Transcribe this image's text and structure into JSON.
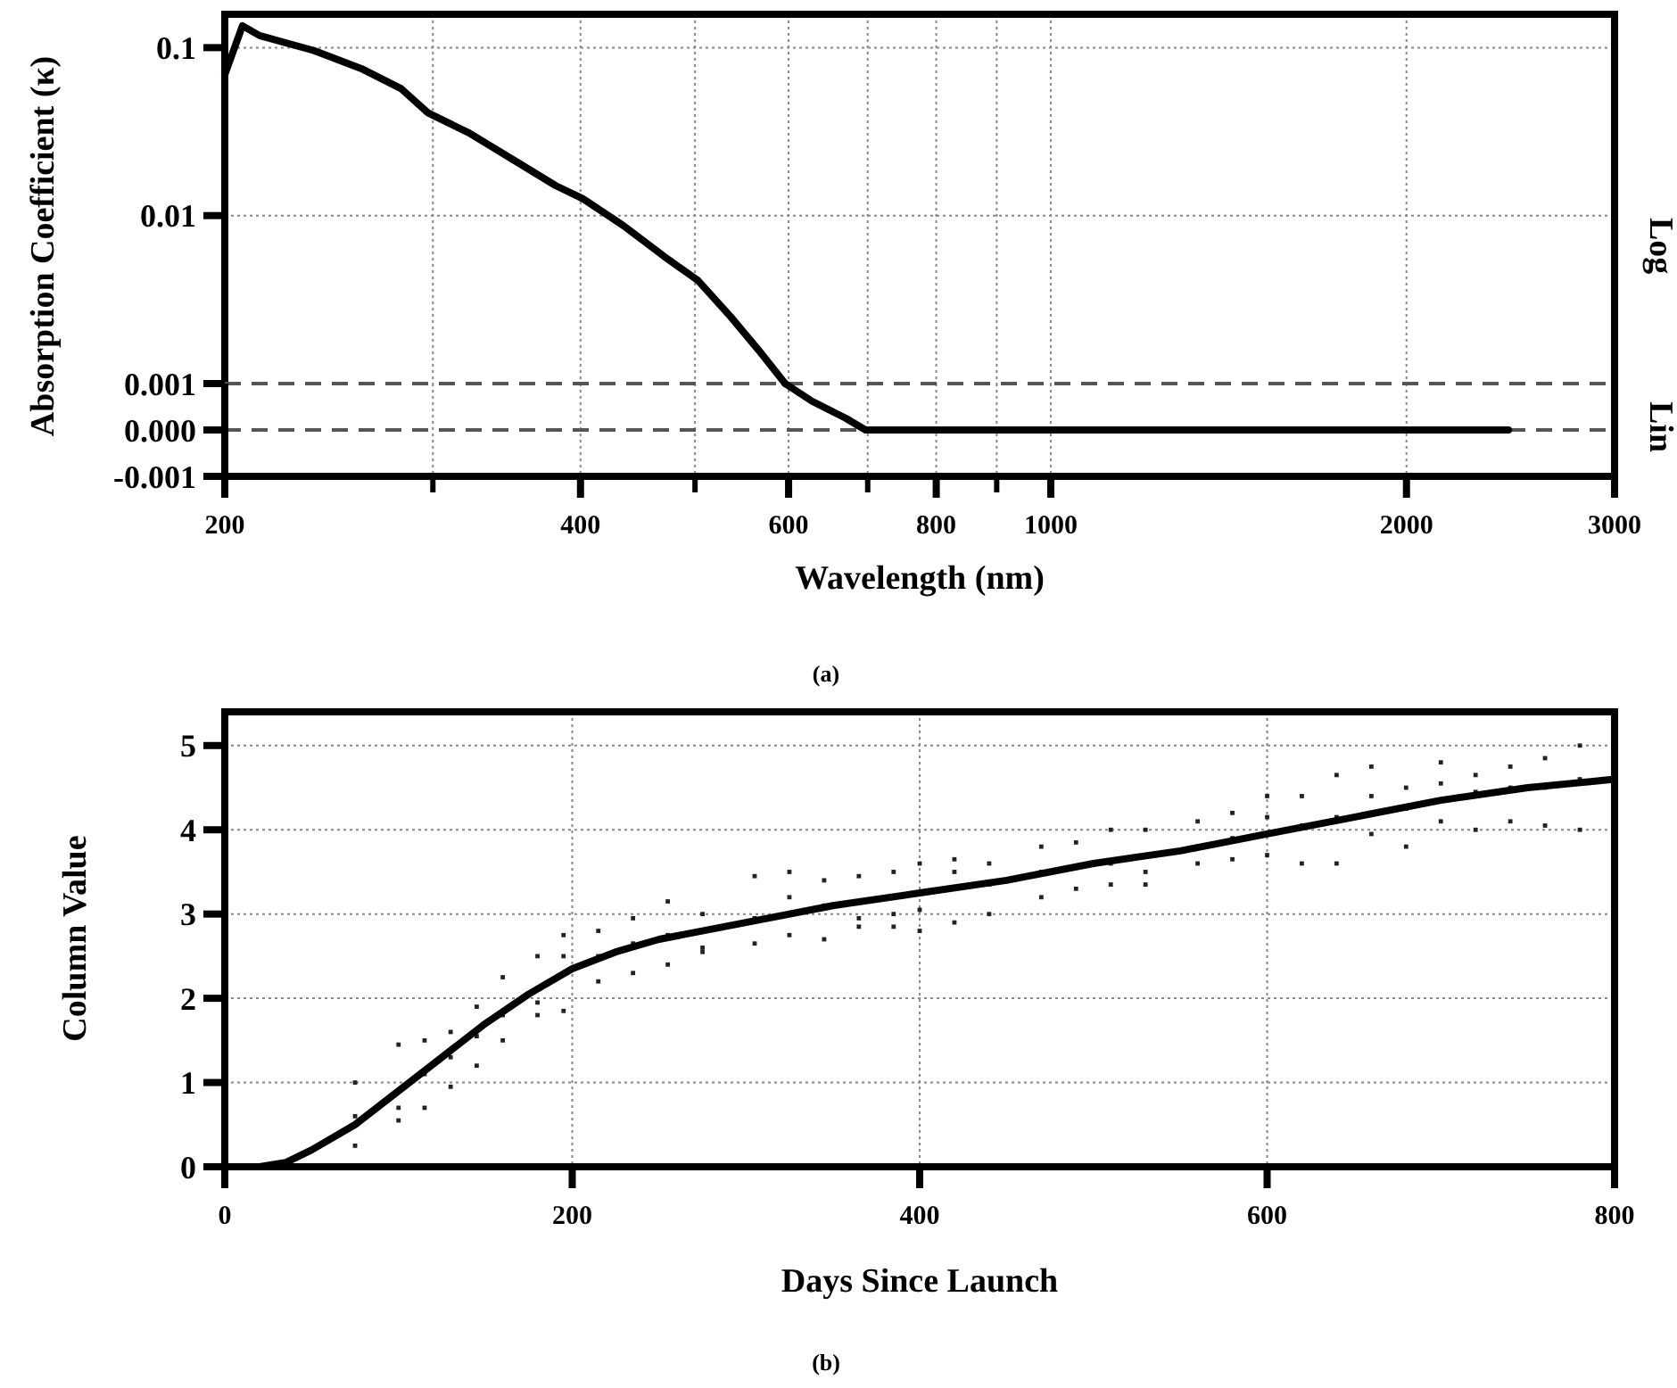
{
  "chart_data": [
    {
      "type": "line",
      "ylabel": "Absorption Coefficient (κ)",
      "log": "xy",
      "grid": true,
      "tick_labels": "y",
      "xlim": [
        200,
        3000
      ],
      "ylim": [
        0.001,
        0.158
      ],
      "xticks": [
        200,
        {
          "value": 300,
          "label": null
        },
        400,
        {
          "value": 500,
          "label": null
        },
        600,
        {
          "value": 700,
          "label": null
        },
        800,
        {
          "value": 900,
          "label": null
        },
        1000,
        2000,
        3000
      ],
      "yticks": [
        0.01,
        0.1
      ],
      "annotations": [
        "Log"
      ],
      "series": [
        {
          "color": "#000000",
          "x": [
            200,
            207,
            214,
            238,
            261,
            282,
            297,
            322,
            352,
            381,
            402,
            435,
            471,
            503,
            536,
            566,
            596
          ],
          "values": [
            0.069,
            0.135,
            0.118,
            0.096,
            0.075,
            0.057,
            0.041,
            0.031,
            0.0212,
            0.0151,
            0.0126,
            0.0087,
            0.0057,
            0.0041,
            0.0025,
            0.00158,
            0.001
          ]
        }
      ]
    },
    {
      "type": "line",
      "xlabel": "Wavelength (nm)",
      "log": "x",
      "grid": "x",
      "xlim": [
        200,
        3000
      ],
      "ylim": [
        -0.001,
        0.001
      ],
      "xticks": [
        200,
        {
          "value": 300,
          "label": null
        },
        400,
        {
          "value": 500,
          "label": null
        },
        600,
        {
          "value": 700,
          "label": null
        },
        800,
        {
          "value": 900,
          "label": null
        },
        1000,
        2000,
        3000
      ],
      "yticks": [
        -0.001,
        {
          "value": 0,
          "label": "0.000"
        },
        0.001
      ],
      "annotations": [
        "Lin",
        "(a)"
      ],
      "ref_lines": [
        {
          "axis": "y",
          "value": 0.001,
          "line_style": "dashed",
          "color": "#555555"
        },
        {
          "axis": "y",
          "value": 0,
          "line_style": "dashed",
          "color": "#555555"
        }
      ],
      "series": [
        {
          "color": "#000000",
          "x": [
            596,
            628,
            671,
            697,
            2440
          ],
          "values": [
            0.001,
            0.00062,
            0.00025,
            0,
            0
          ]
        }
      ]
    },
    {
      "type": "line",
      "xlabel": "Days Since Launch",
      "ylabel": "Column Value",
      "grid": true,
      "xlim": [
        0,
        800
      ],
      "ylim": [
        0,
        5.4
      ],
      "xticks": [
        0,
        200,
        400,
        600,
        800
      ],
      "yticks": [
        0,
        1,
        2,
        3,
        4,
        5
      ],
      "annotations": [
        "(b)"
      ],
      "series": [
        {
          "type": "scatter",
          "marker": "square",
          "color": "#222222",
          "x": [
            75,
            75,
            75,
            100,
            100,
            100,
            115,
            115,
            115,
            130,
            130,
            130,
            145,
            145,
            145,
            160,
            160,
            160,
            180,
            180,
            180,
            195,
            195,
            195,
            215,
            215,
            215,
            235,
            235,
            235,
            255,
            255,
            255,
            275,
            275,
            275,
            305,
            305,
            305,
            325,
            325,
            325,
            345,
            345,
            345,
            365,
            365,
            365,
            385,
            385,
            385,
            400,
            400,
            400,
            420,
            420,
            420,
            440,
            440,
            440,
            470,
            470,
            470,
            490,
            490,
            490,
            510,
            510,
            510,
            530,
            530,
            530,
            560,
            560,
            560,
            580,
            580,
            580,
            600,
            600,
            600,
            620,
            620,
            620,
            640,
            640,
            640,
            660,
            660,
            660,
            680,
            680,
            680,
            700,
            700,
            700,
            720,
            720,
            720,
            740,
            740,
            740,
            760,
            760,
            760,
            780,
            780,
            780
          ],
          "values": [
            0.25,
            1.0,
            0.6,
            0.55,
            1.45,
            0.7,
            0.7,
            1.5,
            1.1,
            0.95,
            1.6,
            1.3,
            1.2,
            1.9,
            1.55,
            1.5,
            2.25,
            1.8,
            1.8,
            2.5,
            1.95,
            1.85,
            2.75,
            2.5,
            2.2,
            2.8,
            2.5,
            2.3,
            2.95,
            2.65,
            2.4,
            3.15,
            2.75,
            2.55,
            3.0,
            2.6,
            2.65,
            3.45,
            2.95,
            2.75,
            3.5,
            3.2,
            2.7,
            3.4,
            3.1,
            2.85,
            3.45,
            2.95,
            2.85,
            3.5,
            3.0,
            2.8,
            3.6,
            3.05,
            2.9,
            3.65,
            3.5,
            3.0,
            3.6,
            3.35,
            3.2,
            3.8,
            3.5,
            3.3,
            3.85,
            3.55,
            3.35,
            4.0,
            3.6,
            3.35,
            4.0,
            3.5,
            3.6,
            4.1,
            3.8,
            3.65,
            4.2,
            3.9,
            3.7,
            4.4,
            4.15,
            3.6,
            4.4,
            4.05,
            3.6,
            4.65,
            4.15,
            3.95,
            4.75,
            4.4,
            3.8,
            4.5,
            4.25,
            4.1,
            4.8,
            4.55,
            4.0,
            4.65,
            4.45,
            4.1,
            4.75,
            4.5,
            4.05,
            4.85,
            4.5,
            4.0,
            5.0,
            4.6
          ]
        },
        {
          "color": "#000000",
          "x": [
            0,
            20,
            35,
            50,
            75,
            100,
            125,
            150,
            175,
            200,
            225,
            250,
            300,
            350,
            400,
            450,
            500,
            550,
            600,
            650,
            700,
            750,
            800
          ],
          "values": [
            0,
            0,
            0.05,
            0.2,
            0.5,
            0.9,
            1.3,
            1.7,
            2.05,
            2.35,
            2.55,
            2.7,
            2.9,
            3.1,
            3.25,
            3.4,
            3.6,
            3.75,
            3.95,
            4.15,
            4.35,
            4.5,
            4.6
          ]
        }
      ]
    }
  ]
}
